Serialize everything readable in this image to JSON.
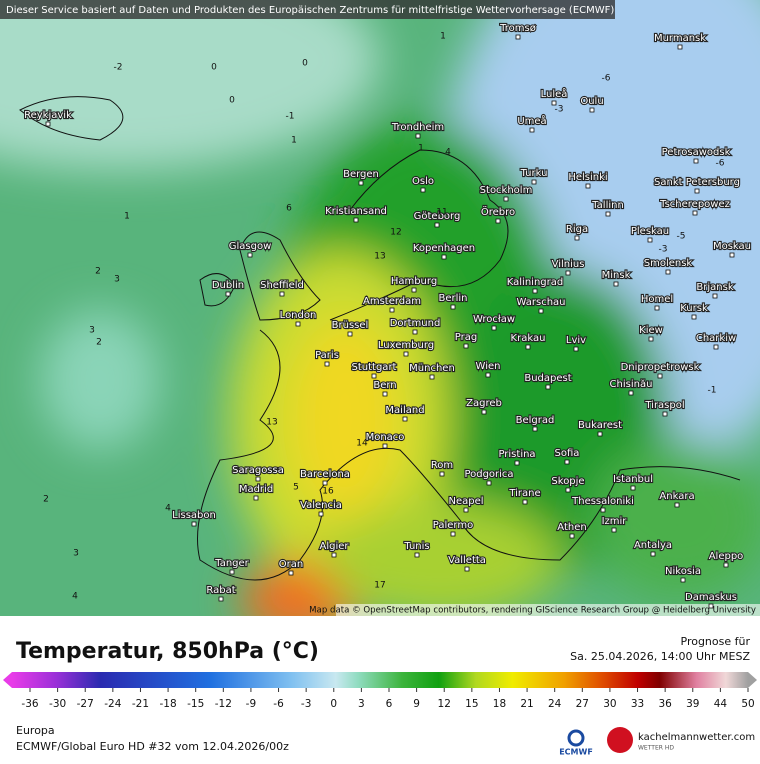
{
  "header": {
    "notice": "Dieser Service basiert auf Daten und Produkten des Europäischen Zentrums für mittelfristige Wettervorhersage (ECMWF)"
  },
  "map": {
    "attribution": "Map data © OpenStreetMap contributors, rendering GIScience Research Group @ Heidelberg University",
    "cities": [
      "Tromsø",
      "Murmansk",
      "Reykjavik",
      "Luleå",
      "Oulu",
      "Umeå",
      "Trondheim",
      "Petrosawodsk",
      "Bergen",
      "Turku",
      "Helsinki",
      "Oslo",
      "Stockholm",
      "Sankt Petersburg",
      "Kristiansand",
      "Örebro",
      "Göteborg",
      "Tallinn",
      "Tscherepowez",
      "Riga",
      "Pleskau",
      "Glasgow",
      "Kopenhagen",
      "Moskau",
      "Vilnius",
      "Smolensk",
      "Hamburg",
      "Minsk",
      "Kaliningrad",
      "Dublin",
      "Sheffield",
      "Brjansk",
      "Amsterdam",
      "Berlin",
      "Warschau",
      "Homel",
      "Kursk",
      "London",
      "Brüssel",
      "Dortmund",
      "Wrocław",
      "Kiew",
      "Prag",
      "Krakau",
      "Charkiw",
      "Luxemburg",
      "Lviv",
      "Paris",
      "Stuttgart",
      "München",
      "Wien",
      "Dnipropetrowsk",
      "Chisinău",
      "Budapest",
      "Bern",
      "Tiraspol",
      "Zagreb",
      "Mailand",
      "Belgrad",
      "Bukarest",
      "Monaco",
      "Pristina",
      "Sofia",
      "Rom",
      "Podgorica",
      "Saragossa",
      "Barcelona",
      "Istanbul",
      "Skopje",
      "Madrid",
      "Tirane",
      "Neapel",
      "Thessaloniki",
      "Ankara",
      "Valencia",
      "Lissabon",
      "Izmir",
      "Athen",
      "Palermo",
      "Algier",
      "Tunis",
      "Antalya",
      "Aleppo",
      "Valletta",
      "Tanger",
      "Oran",
      "Nikosia",
      "Rabat",
      "Damaskus"
    ],
    "contour_labels": [
      1,
      -2,
      0,
      0,
      0,
      -1,
      1,
      1,
      2,
      3,
      3,
      2,
      2,
      4,
      3,
      4,
      1,
      -6,
      -3,
      -5,
      -3,
      -6,
      -1,
      13,
      13,
      14,
      12,
      16,
      5,
      17,
      11,
      6,
      4
    ]
  },
  "footer": {
    "title": "Temperatur, 850hPa (°C)",
    "forecast_label": "Prognose für",
    "forecast_time": "Sa. 25.04.2026, 14:00 Uhr MESZ",
    "region": "Europa",
    "model_run": "ECMWF/Global Euro HD #32 vom  12.04.2026/00z",
    "logo_ecmwf": "ECMWF",
    "logo_site": "kachelmannwetter.com",
    "logo_sub": "WETTER HD"
  },
  "legend": {
    "ticks": [
      -36,
      -30,
      -27,
      -24,
      -21,
      -18,
      -15,
      -12,
      -9,
      -6,
      -3,
      0,
      3,
      6,
      9,
      12,
      15,
      18,
      21,
      24,
      27,
      30,
      33,
      36,
      39,
      44,
      50
    ]
  }
}
